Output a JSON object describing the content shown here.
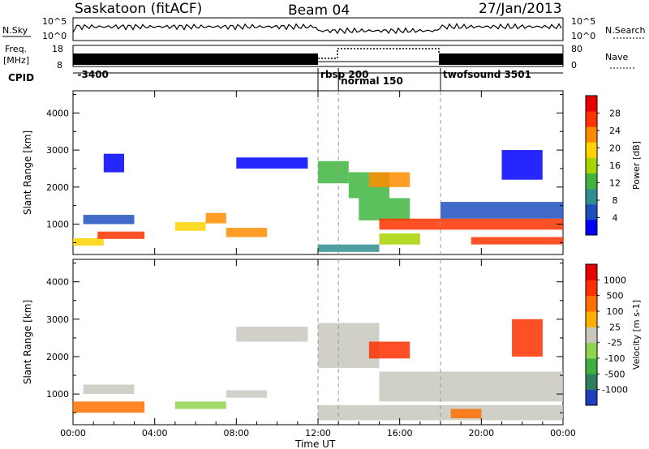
{
  "header": {
    "title": "Saskatoon (fitACF)",
    "beam": "Beam 04",
    "date": "27/Jan/2013"
  },
  "summary": {
    "nsky_label": "N.Sky",
    "nsky_ticks": [
      "10^5",
      "10^0"
    ],
    "nsearch_label": "N.Search",
    "nsearch_ticks": [
      "10^5",
      "10^0"
    ],
    "freq_label_1": "Freq.",
    "freq_label_2": "[MHz]",
    "freq_ticks": [
      "18",
      "8"
    ],
    "nave_label": "Nave",
    "nave_ticks": [
      "80",
      "0"
    ],
    "cpid_label": "CPID",
    "cpid_entries": [
      {
        "text": "-3400",
        "hour": 0.1
      },
      {
        "text": "rbsp 200",
        "hour": 12.0
      },
      {
        "text": "normal 150",
        "hour": 13.0
      },
      {
        "text": "twofsound 3501",
        "hour": 18.0
      }
    ]
  },
  "chart_data": [
    {
      "type": "heatmap",
      "panel": "power",
      "xlabel": "Time UT",
      "ylabel": "Slant Range [km]",
      "xlim": [
        0,
        24
      ],
      "ylim": [
        180,
        4600
      ],
      "x_ticks": [
        "00:00",
        "04:00",
        "08:00",
        "12:00",
        "16:00",
        "20:00",
        "00:00"
      ],
      "y_ticks": [
        1000,
        2000,
        3000,
        4000
      ],
      "colorbar": {
        "label": "Power [dB]",
        "ticks": [
          "28",
          "24",
          "20",
          "16",
          "12",
          "8",
          "4"
        ],
        "colors": [
          "#0000ff",
          "#1f4fbf",
          "#2f8f8f",
          "#3fb53f",
          "#a8d400",
          "#ffd200",
          "#ff8c00",
          "#ff3200",
          "#e60000"
        ]
      },
      "regions": [
        {
          "t0": 0.0,
          "t1": 1.5,
          "r0": 420,
          "r1": 620,
          "level": 5
        },
        {
          "t0": 1.2,
          "t1": 3.5,
          "r0": 600,
          "r1": 800,
          "level": 7
        },
        {
          "t0": 0.5,
          "t1": 3.0,
          "r0": 1000,
          "r1": 1250,
          "level": 1
        },
        {
          "t0": 1.5,
          "t1": 2.5,
          "r0": 2400,
          "r1": 2900,
          "level": 0
        },
        {
          "t0": 5.0,
          "t1": 6.5,
          "r0": 820,
          "r1": 1050,
          "level": 5
        },
        {
          "t0": 6.5,
          "t1": 7.5,
          "r0": 1020,
          "r1": 1300,
          "level": 6
        },
        {
          "t0": 7.5,
          "t1": 9.5,
          "r0": 650,
          "r1": 900,
          "level": 6
        },
        {
          "t0": 8.0,
          "t1": 11.5,
          "r0": 2500,
          "r1": 2800,
          "level": 0
        },
        {
          "t0": 12.0,
          "t1": 13.5,
          "r0": 2100,
          "r1": 2700,
          "level": 3
        },
        {
          "t0": 13.5,
          "t1": 15.5,
          "r0": 1700,
          "r1": 2400,
          "level": 3
        },
        {
          "t0": 14.5,
          "t1": 16.5,
          "r0": 2000,
          "r1": 2400,
          "level": 6
        },
        {
          "t0": 14.0,
          "t1": 16.5,
          "r0": 1100,
          "r1": 1700,
          "level": 3
        },
        {
          "t0": 15.0,
          "t1": 24.0,
          "r0": 850,
          "r1": 1150,
          "level": 7
        },
        {
          "t0": 18.0,
          "t1": 24.0,
          "r0": 1150,
          "r1": 1600,
          "level": 1
        },
        {
          "t0": 15.0,
          "t1": 17.0,
          "r0": 450,
          "r1": 750,
          "level": 4
        },
        {
          "t0": 19.5,
          "t1": 24.0,
          "r0": 450,
          "r1": 650,
          "level": 7
        },
        {
          "t0": 21.0,
          "t1": 23.0,
          "r0": 2200,
          "r1": 3000,
          "level": 0
        },
        {
          "t0": 12.0,
          "t1": 15.0,
          "r0": 250,
          "r1": 450,
          "level": 2
        }
      ]
    },
    {
      "type": "heatmap",
      "panel": "velocity",
      "xlabel": "Time UT",
      "ylabel": "Slant Range [km]",
      "xlim": [
        0,
        24
      ],
      "ylim": [
        180,
        4600
      ],
      "x_ticks": [
        "00:00",
        "04:00",
        "08:00",
        "12:00",
        "16:00",
        "20:00",
        "00:00"
      ],
      "y_ticks": [
        1000,
        2000,
        3000,
        4000
      ],
      "colorbar": {
        "label": "Velocity [m s-1]",
        "ticks": [
          "1000",
          "500",
          "100",
          "25",
          "-25",
          "-100",
          "-500",
          "-1000"
        ],
        "colors": [
          "#1f3fbf",
          "#2f7f5f",
          "#3faf3f",
          "#8fd44f",
          "#c8c8c0",
          "#ffb000",
          "#ff7000",
          "#ff3000",
          "#e60000"
        ]
      },
      "regions": [
        {
          "t0": 0.0,
          "t1": 3.5,
          "r0": 500,
          "r1": 800,
          "level": 6
        },
        {
          "t0": 0.5,
          "t1": 3.0,
          "r0": 1000,
          "r1": 1250,
          "level": 4
        },
        {
          "t0": 5.0,
          "t1": 7.5,
          "r0": 600,
          "r1": 800,
          "level": 3
        },
        {
          "t0": 7.5,
          "t1": 9.5,
          "r0": 900,
          "r1": 1100,
          "level": 4
        },
        {
          "t0": 8.0,
          "t1": 11.5,
          "r0": 2400,
          "r1": 2800,
          "level": 4
        },
        {
          "t0": 12.0,
          "t1": 15.0,
          "r0": 1700,
          "r1": 2900,
          "level": 4
        },
        {
          "t0": 14.5,
          "t1": 16.5,
          "r0": 1950,
          "r1": 2400,
          "level": 7
        },
        {
          "t0": 15.0,
          "t1": 24.0,
          "r0": 800,
          "r1": 1600,
          "level": 4
        },
        {
          "t0": 12.0,
          "t1": 24.0,
          "r0": 300,
          "r1": 700,
          "level": 4
        },
        {
          "t0": 18.5,
          "t1": 20.0,
          "r0": 350,
          "r1": 600,
          "level": 6
        },
        {
          "t0": 21.5,
          "t1": 23.0,
          "r0": 2000,
          "r1": 3000,
          "level": 7
        }
      ]
    }
  ]
}
